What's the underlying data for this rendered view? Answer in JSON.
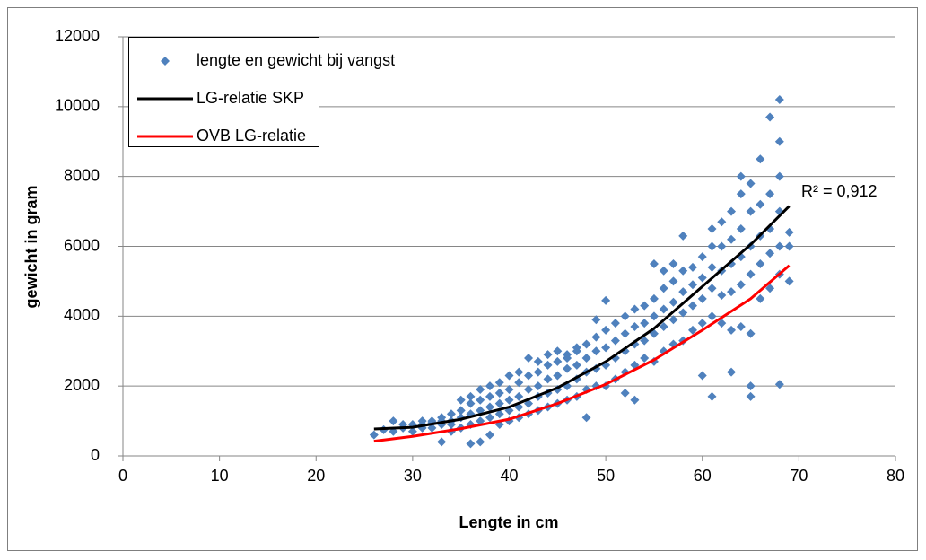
{
  "chart_data": {
    "type": "scatter",
    "xlabel": "Lengte in cm",
    "ylabel": "gewicht in gram",
    "annotation": "R² = 0,912",
    "xlim": [
      0,
      80
    ],
    "xticks": [
      0,
      10,
      20,
      30,
      40,
      50,
      60,
      70,
      80
    ],
    "ylim": [
      0,
      12000
    ],
    "yticks": [
      0,
      2000,
      4000,
      6000,
      8000,
      10000,
      12000
    ],
    "grid": true,
    "legend": "upper left",
    "series": [
      {
        "name": "lengte en gewicht bij vangst",
        "color": "#4f81bd",
        "mode": "markers",
        "x": [
          26,
          27,
          28,
          28,
          29,
          29,
          30,
          30,
          31,
          31,
          31,
          32,
          32,
          32,
          33,
          33,
          33,
          33,
          34,
          34,
          34,
          34,
          35,
          35,
          35,
          35,
          36,
          36,
          36,
          36,
          36,
          37,
          37,
          37,
          37,
          37,
          38,
          38,
          38,
          38,
          38,
          39,
          39,
          39,
          39,
          39,
          40,
          40,
          40,
          40,
          40,
          41,
          41,
          41,
          41,
          41,
          42,
          42,
          42,
          42,
          42,
          43,
          43,
          43,
          43,
          43,
          44,
          44,
          44,
          44,
          44,
          45,
          45,
          45,
          45,
          45,
          46,
          46,
          46,
          46,
          46,
          47,
          47,
          47,
          47,
          47,
          48,
          48,
          48,
          48,
          48,
          49,
          49,
          49,
          49,
          49,
          50,
          50,
          50,
          50,
          50,
          51,
          51,
          51,
          51,
          52,
          52,
          52,
          52,
          52,
          53,
          53,
          53,
          53,
          53,
          54,
          54,
          54,
          54,
          55,
          55,
          55,
          55,
          55,
          56,
          56,
          56,
          56,
          56,
          57,
          57,
          57,
          57,
          57,
          58,
          58,
          58,
          58,
          58,
          59,
          59,
          59,
          59,
          60,
          60,
          60,
          60,
          60,
          61,
          61,
          61,
          61,
          61,
          61,
          62,
          62,
          62,
          62,
          62,
          63,
          63,
          63,
          63,
          63,
          63,
          64,
          64,
          64,
          64,
          64,
          64,
          65,
          65,
          65,
          65,
          65,
          65,
          65,
          66,
          66,
          66,
          66,
          66,
          67,
          67,
          67,
          67,
          67,
          68,
          68,
          68,
          68,
          68,
          68,
          68,
          69,
          69,
          69
        ],
        "values": [
          600,
          750,
          700,
          1000,
          800,
          900,
          700,
          900,
          800,
          1000,
          900,
          800,
          950,
          1000,
          400,
          900,
          1100,
          1000,
          700,
          1000,
          1200,
          900,
          800,
          1100,
          1600,
          1300,
          350,
          900,
          1200,
          1500,
          1700,
          400,
          1000,
          1300,
          1600,
          1900,
          600,
          1100,
          1400,
          1700,
          2000,
          900,
          1200,
          1500,
          1800,
          2100,
          1000,
          1300,
          1600,
          1900,
          2300,
          1100,
          1400,
          1700,
          2100,
          2400,
          1200,
          1500,
          1900,
          2300,
          2800,
          1300,
          1700,
          2000,
          2400,
          2700,
          1400,
          1800,
          2200,
          2600,
          2900,
          1500,
          1900,
          2300,
          2700,
          3000,
          1600,
          2000,
          2500,
          2900,
          2800,
          1700,
          2200,
          2600,
          3000,
          3100,
          1100,
          1900,
          2400,
          2800,
          3200,
          2000,
          2500,
          3000,
          3400,
          3900,
          2000,
          2600,
          3100,
          3600,
          4450,
          2200,
          2800,
          3300,
          3800,
          1800,
          2400,
          3000,
          3500,
          4000,
          1600,
          2600,
          3200,
          3700,
          4200,
          2800,
          3300,
          3800,
          4300,
          2700,
          3500,
          4000,
          4500,
          5500,
          3000,
          3700,
          4200,
          4800,
          5300,
          3200,
          3900,
          4400,
          5000,
          5500,
          3300,
          4100,
          4700,
          5300,
          6300,
          3600,
          4300,
          4900,
          5400,
          2300,
          3800,
          4500,
          5100,
          5700,
          1700,
          4000,
          4800,
          5400,
          6000,
          6500,
          3800,
          4600,
          5300,
          6000,
          6700,
          2400,
          3600,
          4700,
          5500,
          6200,
          7000,
          3700,
          4900,
          5700,
          6500,
          7500,
          8000,
          1700,
          2000,
          3500,
          5200,
          6000,
          7000,
          7800,
          4500,
          5500,
          6300,
          7200,
          8500,
          4800,
          5800,
          6500,
          7500,
          9700,
          2050,
          5200,
          6000,
          7000,
          8000,
          9000,
          10200,
          5000,
          6000,
          6400
        ]
      },
      {
        "name": "LG-relatie SKP",
        "color": "#000000",
        "mode": "line",
        "x": [
          26,
          30,
          35,
          40,
          45,
          50,
          55,
          60,
          65,
          69
        ],
        "values": [
          770,
          820,
          1050,
          1400,
          1950,
          2700,
          3650,
          4850,
          6050,
          7150
        ]
      },
      {
        "name": "OVB LG-relatie",
        "color": "#ff0000",
        "mode": "line",
        "x": [
          26,
          30,
          35,
          40,
          45,
          50,
          55,
          60,
          65,
          69
        ],
        "values": [
          420,
          560,
          780,
          1050,
          1500,
          2050,
          2750,
          3600,
          4500,
          5450
        ]
      }
    ]
  }
}
